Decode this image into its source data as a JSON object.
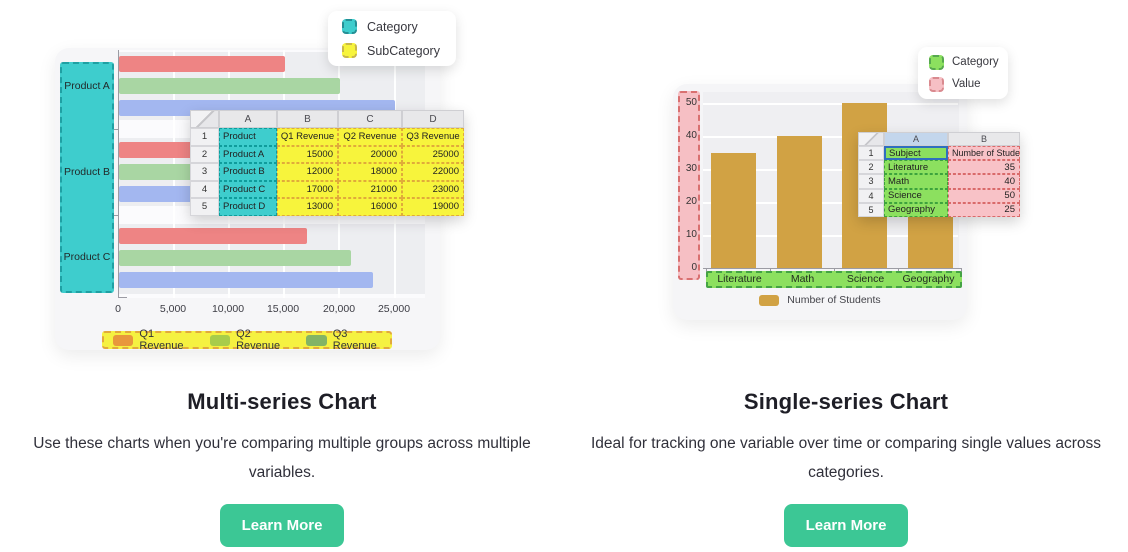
{
  "colors": {
    "category_teal": "#3ECDCD",
    "subcategory_yellow": "#F7F43C",
    "category_green": "#8CE05F",
    "value_pink": "#F6BFC4",
    "bar_gold": "#D1A244",
    "bar_salmon": "#EE8484",
    "bar_green": "#A9D6A3",
    "bar_blue": "#A3B7F0",
    "legend_q1": "#E8973C",
    "legend_q2": "#A8CC4A",
    "legend_q3": "#83B465",
    "button_green": "#3CC795"
  },
  "left": {
    "title": "Multi-series Chart",
    "description": "Use these charts when you're comparing multiple groups across multiple variables.",
    "button_label": "Learn More",
    "top_legend": {
      "items": [
        "Category",
        "SubCategory"
      ]
    },
    "bottom_legend": {
      "items": [
        "Q1 Revenue",
        "Q2 Revenue",
        "Q3 Revenue"
      ]
    },
    "y_categories": [
      "Product A",
      "Product B",
      "Product C"
    ],
    "x_ticks": [
      "0",
      "5,000",
      "10,000",
      "15,000",
      "20,000",
      "25,000"
    ],
    "table": {
      "col_headers": [
        "A",
        "B",
        "C",
        "D"
      ],
      "row_numbers": [
        "1",
        "2",
        "3",
        "4",
        "5"
      ],
      "rows": [
        [
          "Product",
          "Q1 Revenue",
          "Q2 Revenue",
          "Q3 Revenue"
        ],
        [
          "Product A",
          "15000",
          "20000",
          "25000"
        ],
        [
          "Product B",
          "12000",
          "18000",
          "22000"
        ],
        [
          "Product C",
          "17000",
          "21000",
          "23000"
        ],
        [
          "Product D",
          "13000",
          "16000",
          "19000"
        ]
      ]
    }
  },
  "right": {
    "title": "Single-series Chart",
    "description": "Ideal for tracking one variable over time or comparing single values across categories.",
    "button_label": "Learn More",
    "top_legend": {
      "items": [
        "Category",
        "Value"
      ]
    },
    "series_legend": "Number of Students",
    "y_ticks": [
      "50",
      "40",
      "30",
      "20",
      "10",
      "0"
    ],
    "x_categories": [
      "Literature",
      "Math",
      "Science",
      "Geography"
    ],
    "table": {
      "col_headers": [
        "A",
        "B"
      ],
      "row_numbers": [
        "1",
        "2",
        "3",
        "4",
        "5"
      ],
      "rows": [
        [
          "Subject",
          "Number of Students"
        ],
        [
          "Literature",
          "35"
        ],
        [
          "Math",
          "40"
        ],
        [
          "Science",
          "50"
        ],
        [
          "Geography",
          "25"
        ]
      ]
    }
  },
  "chart_data": [
    {
      "type": "bar",
      "orientation": "horizontal",
      "title": "Multi-series Chart",
      "categories": [
        "Product A",
        "Product B",
        "Product C",
        "Product D"
      ],
      "series": [
        {
          "name": "Q1 Revenue",
          "values": [
            15000,
            12000,
            17000,
            13000
          ]
        },
        {
          "name": "Q2 Revenue",
          "values": [
            20000,
            18000,
            21000,
            16000
          ]
        },
        {
          "name": "Q3 Revenue",
          "values": [
            25000,
            22000,
            23000,
            19000
          ]
        }
      ],
      "xlim": [
        0,
        25000
      ],
      "x_tick_labels": [
        "0",
        "5,000",
        "10,000",
        "15,000",
        "20,000",
        "25,000"
      ],
      "legend_position": "bottom",
      "note": "Product D row exists in the data table; its bar group is hidden behind the floating spreadsheet"
    },
    {
      "type": "bar",
      "orientation": "vertical",
      "title": "Single-series Chart",
      "categories": [
        "Literature",
        "Math",
        "Science",
        "Geography"
      ],
      "series": [
        {
          "name": "Number of Students",
          "values": [
            35,
            40,
            50,
            25
          ]
        }
      ],
      "ylim": [
        0,
        50
      ],
      "y_tick_labels": [
        "0",
        "10",
        "20",
        "30",
        "40",
        "50"
      ],
      "legend_position": "bottom"
    }
  ]
}
